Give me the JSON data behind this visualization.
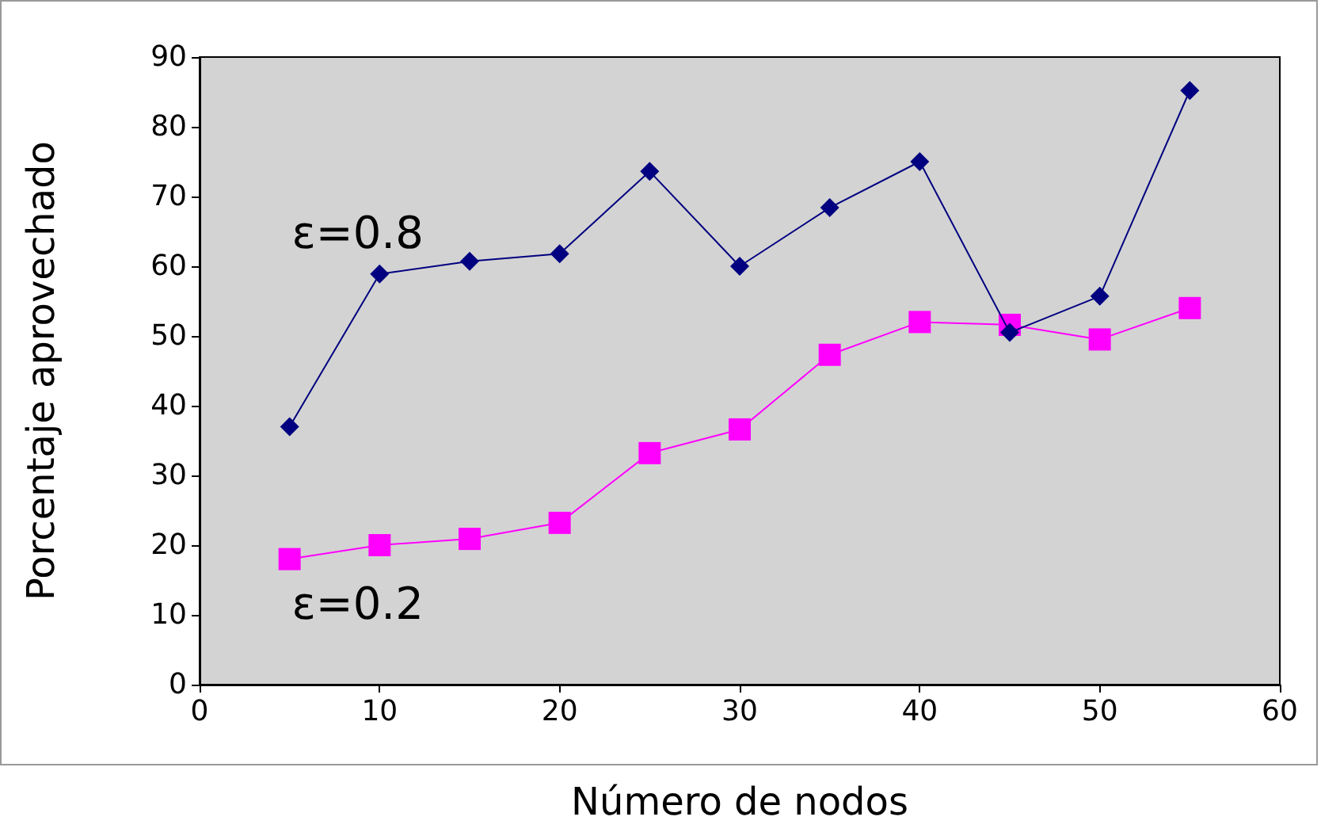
{
  "chart_data": {
    "type": "line",
    "xlabel": "Número de nodos",
    "ylabel": "Porcentaje aprovechado",
    "x": [
      5,
      10,
      15,
      20,
      25,
      30,
      35,
      40,
      45,
      50,
      55
    ],
    "series": [
      {
        "name": "ε=0.8",
        "color": "#000080",
        "marker": "diamond",
        "values": [
          37,
          58.9,
          60.7,
          61.8,
          73.6,
          60,
          68.4,
          75,
          50.5,
          55.7,
          85.2
        ]
      },
      {
        "name": "ε=0.2",
        "color": "#ff00ff",
        "marker": "square",
        "values": [
          18,
          20,
          20.9,
          23.2,
          33.2,
          36.6,
          47.3,
          52,
          51.6,
          49.5,
          54
        ]
      }
    ],
    "xlim": [
      0,
      60
    ],
    "xticks": [
      0,
      10,
      20,
      30,
      40,
      50,
      60
    ],
    "ylim": [
      0,
      90
    ],
    "yticks": [
      0,
      10,
      20,
      30,
      40,
      50,
      60,
      70,
      80,
      90
    ],
    "grid": false,
    "legend": false
  }
}
